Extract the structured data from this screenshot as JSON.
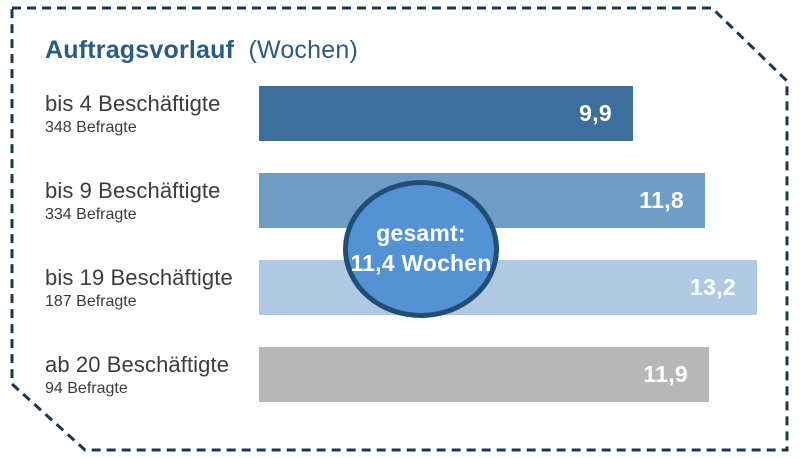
{
  "title": {
    "main": "Auftragsvorlauf",
    "suffix": "(Wochen)"
  },
  "overlay": {
    "line1": "gesamt:",
    "line2": "11,4 Wochen"
  },
  "colors": {
    "background": "#ffffff",
    "border_dash": "#1c3850",
    "title_text": "#2b5c86",
    "label_text": "#3c3c3b",
    "value_text": "#ffffff",
    "circle_fill": "#5592d3",
    "circle_border": "#1f4e77",
    "bar_colors": [
      "#3d6f9c",
      "#6f9dc6",
      "#aec9e1",
      "#b7b7b7"
    ]
  },
  "chart_data": {
    "type": "bar",
    "orientation": "horizontal",
    "title": "Auftragsvorlauf (Wochen)",
    "unit": "Wochen",
    "categories": [
      "bis 4 Beschäftigte",
      "bis 9 Beschäftigte",
      "bis 19 Beschäftigte",
      "ab 20 Beschäftigte"
    ],
    "sublabels": [
      "348 Befragte",
      "334 Befragte",
      "187 Befragte",
      "94 Befragte"
    ],
    "values": [
      9.9,
      11.8,
      13.2,
      11.9
    ],
    "value_labels": [
      "9,9",
      "11,8",
      "13,2",
      "11,9"
    ],
    "bar_colors": [
      "#3d6f9c",
      "#6f9dc6",
      "#aec9e1",
      "#b7b7b7"
    ],
    "overall": {
      "label": "gesamt:",
      "value": 11.4,
      "value_label": "11,4 Wochen"
    },
    "xlim": [
      0,
      14.2
    ],
    "grid": false,
    "legend": false,
    "annotations": [
      "gesamt: 11,4 Wochen"
    ]
  }
}
